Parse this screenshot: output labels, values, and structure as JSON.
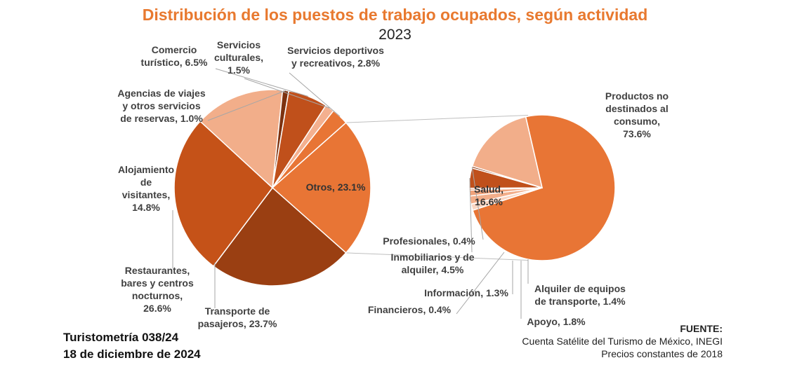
{
  "chart_data": {
    "type": "pie",
    "title": "Distribución de los puestos de trabajo ocupados, según actividad",
    "subtitle": "2023",
    "main_pie": {
      "slices": [
        {
          "label": "Otros",
          "value": 23.1,
          "text": "Otros, 23.1%",
          "color": "#e87535"
        },
        {
          "label": "Transporte de pasajeros",
          "value": 23.7,
          "text": [
            "Transporte de",
            "pasajeros, 23.7%"
          ],
          "color": "#9a3f12"
        },
        {
          "label": "Restaurantes, bares y centros nocturnos",
          "value": 26.6,
          "text": [
            "Restaurantes,",
            "bares y centros",
            "nocturnos,",
            "26.6%"
          ],
          "color": "#c55218"
        },
        {
          "label": "Alojamiento de visitantes",
          "value": 14.8,
          "text": [
            "Alojamiento",
            "de",
            "visitantes,",
            "14.8%"
          ],
          "color": "#f2ae8a"
        },
        {
          "label": "Agencias de viajes y otros servicios de reservas",
          "value": 1.0,
          "text": [
            "Agencias de viajes",
            "y otros servicios",
            "de reservas, 1.0%"
          ],
          "color": "#7d3210"
        },
        {
          "label": "Comercio turístico",
          "value": 6.5,
          "text": [
            "Comercio",
            "turístico, 6.5%"
          ],
          "color": "#c0501b"
        },
        {
          "label": "Servicios culturales",
          "value": 1.5,
          "text": [
            "Servicios",
            "culturales,",
            "1.5%"
          ],
          "color": "#f4b08f"
        },
        {
          "label": "Servicios deportivos y recreativos",
          "value": 2.8,
          "text": [
            "Servicios deportivos",
            "y recreativos, 2.8%"
          ],
          "color": "#e87535"
        }
      ]
    },
    "secondary_pie": {
      "parent": "Otros",
      "slices": [
        {
          "label": "Productos no destinados al consumo",
          "value": 73.6,
          "text": [
            "Productos no",
            "destinados al",
            "consumo,",
            "73.6%"
          ],
          "color": "#e87535"
        },
        {
          "label": "Alquiler de equipos de transporte",
          "value": 1.4,
          "text": [
            "Alquiler de equipos",
            "de transporte, 1.4%"
          ],
          "color": "#fad6c3"
        },
        {
          "label": "Apoyo",
          "value": 1.8,
          "text": [
            "Apoyo, 1.8%"
          ],
          "color": "#f2ae8a"
        },
        {
          "label": "Información",
          "value": 1.3,
          "text": [
            "Información, 1.3%"
          ],
          "color": "#f0a27a"
        },
        {
          "label": "Financieros",
          "value": 0.4,
          "text": [
            "Financieros, 0.4%"
          ],
          "color": "#eb8a5a"
        },
        {
          "label": "Inmobiliarios y de alquiler",
          "value": 4.5,
          "text": [
            "Inmobiliarios y de",
            "alquiler, 4.5%"
          ],
          "color": "#c0501b"
        },
        {
          "label": "Profesionales",
          "value": 0.4,
          "text": [
            "Profesionales, 0.4%"
          ],
          "color": "#8a3812"
        },
        {
          "label": "Salud",
          "value": 16.6,
          "text": [
            "Salud,",
            "16.6%"
          ],
          "color": "#f2ae8a"
        }
      ]
    }
  },
  "footer": {
    "report": "Turistometría 038/24",
    "date": "18 de diciembre de 2024",
    "source_title": "FUENTE:",
    "source": "Cuenta Satélite del Turismo de México, INEGI",
    "note": "Precios constantes de 2018"
  }
}
